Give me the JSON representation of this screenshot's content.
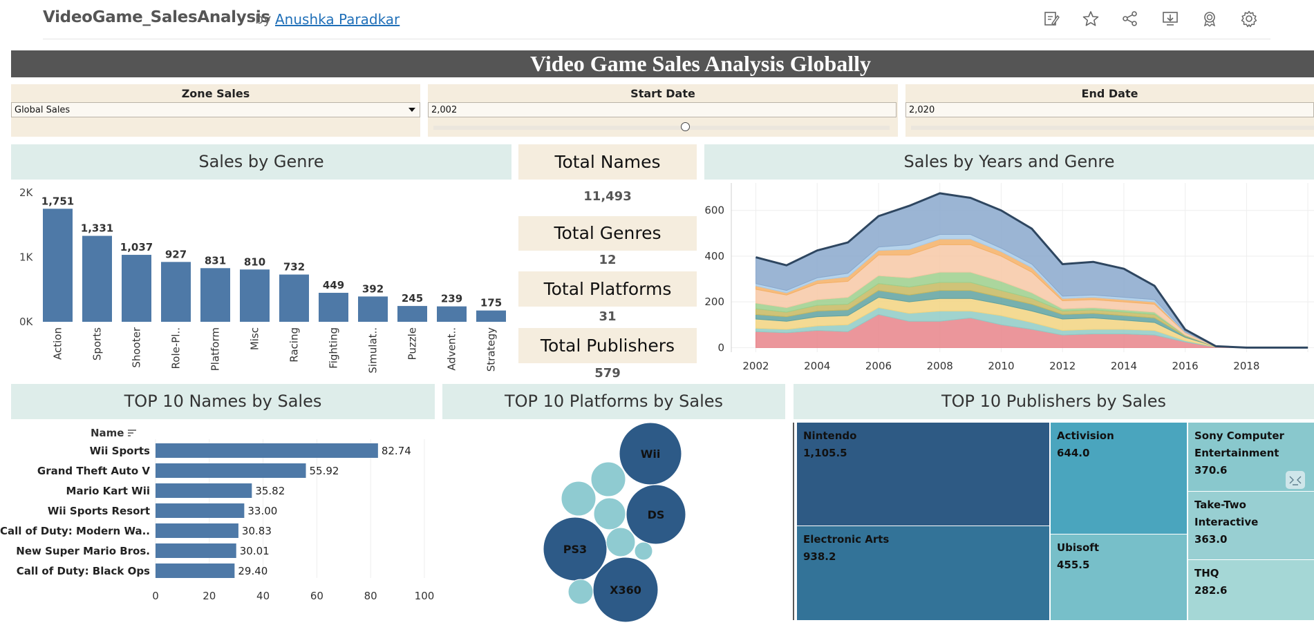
{
  "header": {
    "workbook_title": "VideoGame_SalesAnalysis",
    "by": "by",
    "author": "Anushka Paradkar",
    "icons": [
      "edit-icon",
      "star-icon",
      "share-icon",
      "download-icon",
      "badge-icon",
      "gear-icon"
    ]
  },
  "banner": {
    "title": "Video Game Sales Analysis Globally"
  },
  "filters": {
    "zone": {
      "label": "Zone Sales",
      "value": "Global Sales"
    },
    "start": {
      "label": "Start Date",
      "value": "2,002"
    },
    "end": {
      "label": "End Date",
      "value": "2,020"
    }
  },
  "kpis": [
    {
      "label": "Total Names",
      "value": "11,493"
    },
    {
      "label": "Total Genres",
      "value": "12"
    },
    {
      "label": "Total Platforms",
      "value": "31"
    },
    {
      "label": "Total Publishers",
      "value": "579"
    }
  ],
  "panels": {
    "genre": "Sales by Genre",
    "years": "Sales by Years and Genre",
    "names": "TOP 10 Names by Sales",
    "platforms": "TOP 10 Platforms by Sales",
    "publishers": "TOP 10 Publishers by Sales"
  },
  "colors": {
    "bar": "#4e79a7",
    "panel_head": "#deedea",
    "kpi_head": "#f5edde",
    "banner": "#555555"
  },
  "chart_data": [
    {
      "type": "bar",
      "title": "Sales by Genre",
      "categories": [
        "Action",
        "Sports",
        "Shooter",
        "Role-Pl..",
        "Platform",
        "Misc",
        "Racing",
        "Fighting",
        "Simulat..",
        "Puzzle",
        "Advent..",
        "Strategy"
      ],
      "values": [
        1751,
        1331,
        1037,
        927,
        831,
        810,
        732,
        449,
        392,
        245,
        239,
        175
      ],
      "labels": [
        "1,751",
        "1,331",
        "1,037",
        "927",
        "831",
        "810",
        "732",
        "449",
        "392",
        "245",
        "239",
        "175"
      ],
      "yticks": [
        "0K",
        "1K",
        "2K"
      ],
      "ylim": [
        0,
        2000
      ]
    },
    {
      "type": "area",
      "title": "Sales by Years and Genre",
      "x": [
        2002,
        2003,
        2004,
        2005,
        2006,
        2007,
        2008,
        2009,
        2010,
        2011,
        2012,
        2013,
        2014,
        2015,
        2016,
        2017,
        2018,
        2019,
        2020
      ],
      "xticks": [
        "2002",
        "2004",
        "2006",
        "2008",
        "2010",
        "2012",
        "2014",
        "2016",
        "2018"
      ],
      "yticks": [
        "0",
        "200",
        "400",
        "600"
      ],
      "ylim": [
        -20,
        720
      ],
      "xlim": [
        2001.2,
        2020.2
      ],
      "series": [
        {
          "color": "#e8848a",
          "values": [
            70,
            65,
            75,
            70,
            145,
            115,
            115,
            130,
            100,
            80,
            55,
            60,
            60,
            55,
            25,
            2,
            0,
            0,
            0
          ]
        },
        {
          "color": "#8fcbc5",
          "values": [
            15,
            15,
            20,
            30,
            30,
            35,
            45,
            30,
            40,
            30,
            20,
            20,
            20,
            20,
            5,
            1,
            0,
            0,
            0
          ]
        },
        {
          "color": "#f2d480",
          "values": [
            40,
            35,
            40,
            40,
            45,
            50,
            55,
            55,
            50,
            50,
            50,
            50,
            40,
            35,
            15,
            1,
            0,
            0,
            0
          ]
        },
        {
          "color": "#5fa2a0",
          "values": [
            20,
            20,
            25,
            25,
            30,
            30,
            35,
            35,
            30,
            30,
            20,
            20,
            20,
            20,
            5,
            0,
            0,
            0,
            0
          ]
        },
        {
          "color": "#c7b860",
          "values": [
            25,
            20,
            25,
            25,
            30,
            35,
            35,
            35,
            30,
            25,
            15,
            15,
            15,
            15,
            3,
            0,
            0,
            0,
            0
          ]
        },
        {
          "color": "#9ccf8c",
          "values": [
            25,
            20,
            25,
            30,
            35,
            40,
            45,
            45,
            40,
            25,
            10,
            10,
            10,
            10,
            2,
            0,
            0,
            0,
            0
          ]
        },
        {
          "color": "#f7c8a6",
          "values": [
            60,
            55,
            70,
            70,
            90,
            100,
            120,
            120,
            110,
            90,
            35,
            35,
            35,
            35,
            10,
            1,
            0,
            0,
            0
          ]
        },
        {
          "color": "#f4b066",
          "values": [
            15,
            10,
            15,
            20,
            20,
            25,
            25,
            25,
            20,
            20,
            10,
            10,
            10,
            10,
            2,
            0,
            0,
            0,
            0
          ]
        },
        {
          "color": "#a9cbe8",
          "values": [
            10,
            10,
            10,
            15,
            15,
            20,
            20,
            20,
            15,
            15,
            10,
            10,
            10,
            10,
            2,
            0,
            0,
            0,
            0
          ]
        },
        {
          "color": "#8aa8cc",
          "values": [
            115,
            110,
            120,
            135,
            135,
            170,
            180,
            160,
            165,
            155,
            140,
            145,
            125,
            60,
            10,
            1,
            0,
            0,
            0
          ]
        }
      ]
    },
    {
      "type": "bar",
      "title": "TOP 10 Names by Sales",
      "axis_label": "Name",
      "categories": [
        "Wii Sports",
        "Grand Theft Auto V",
        "Mario Kart Wii",
        "Wii Sports Resort",
        "Call of Duty: Modern Wa..",
        "New Super Mario Bros.",
        "Call of Duty: Black Ops"
      ],
      "values": [
        82.74,
        55.92,
        35.82,
        33.0,
        30.83,
        30.01,
        29.4
      ],
      "labels": [
        "82.74",
        "55.92",
        "35.82",
        "33.00",
        "30.83",
        "30.01",
        "29.40"
      ],
      "xticks": [
        "0",
        "20",
        "40",
        "60",
        "80",
        "100"
      ],
      "xlim": [
        0,
        100
      ]
    },
    {
      "type": "scatter",
      "title": "TOP 10 Platforms by Sales",
      "labels": [
        "Wii",
        "DS",
        "PS3",
        "X360"
      ]
    },
    {
      "type": "table",
      "title": "TOP 10 Publishers by Sales",
      "items": [
        {
          "name": "Nintendo",
          "value": "1,105.5"
        },
        {
          "name": "Electronic Arts",
          "value": "938.2"
        },
        {
          "name": "Activision",
          "value": "644.0"
        },
        {
          "name": "Ubisoft",
          "value": "455.5"
        },
        {
          "name": "Sony Computer Entertainment",
          "value": "370.6"
        },
        {
          "name": "Take-Two Interactive",
          "value": "363.0"
        },
        {
          "name": "THQ",
          "value": "282.6"
        }
      ]
    }
  ]
}
